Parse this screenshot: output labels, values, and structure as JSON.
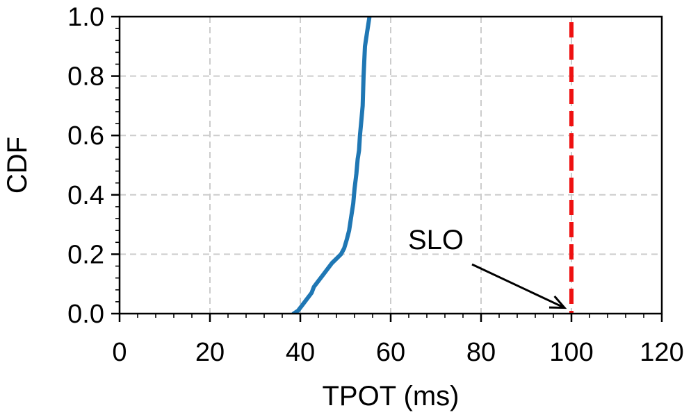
{
  "chart_data": {
    "type": "line",
    "title": "",
    "xlabel": "TPOT (ms)",
    "ylabel": "CDF",
    "xlim": [
      0,
      120
    ],
    "ylim": [
      0,
      1.0
    ],
    "xticks": [
      "0",
      "20",
      "40",
      "60",
      "80",
      "100",
      "120"
    ],
    "yticks": [
      "0.0",
      "0.2",
      "0.4",
      "0.6",
      "0.8",
      "1.0"
    ],
    "grid": true,
    "series": [
      {
        "color": "#1f77b4",
        "x": [
          38.5,
          39.5,
          40.5,
          41.5,
          42.5,
          43.0,
          44.0,
          45.0,
          46.0,
          47.0,
          48.0,
          49.0,
          49.7,
          50.3,
          50.8,
          51.2,
          51.7,
          52.0,
          52.4,
          52.7,
          53.0,
          53.2,
          53.5,
          53.8,
          54.0,
          54.3,
          54.8,
          55.3
        ],
        "y": [
          0.0,
          0.01,
          0.03,
          0.05,
          0.07,
          0.09,
          0.11,
          0.13,
          0.15,
          0.17,
          0.185,
          0.2,
          0.22,
          0.25,
          0.28,
          0.32,
          0.37,
          0.42,
          0.47,
          0.52,
          0.55,
          0.6,
          0.65,
          0.7,
          0.8,
          0.9,
          0.95,
          1.0
        ]
      }
    ],
    "reference_line": {
      "x": 100,
      "color": "#ee1111",
      "style": "dashed"
    },
    "annotation": {
      "text": "SLO",
      "xy": [
        100,
        0.015
      ],
      "text_xy": [
        70,
        0.25
      ]
    }
  }
}
